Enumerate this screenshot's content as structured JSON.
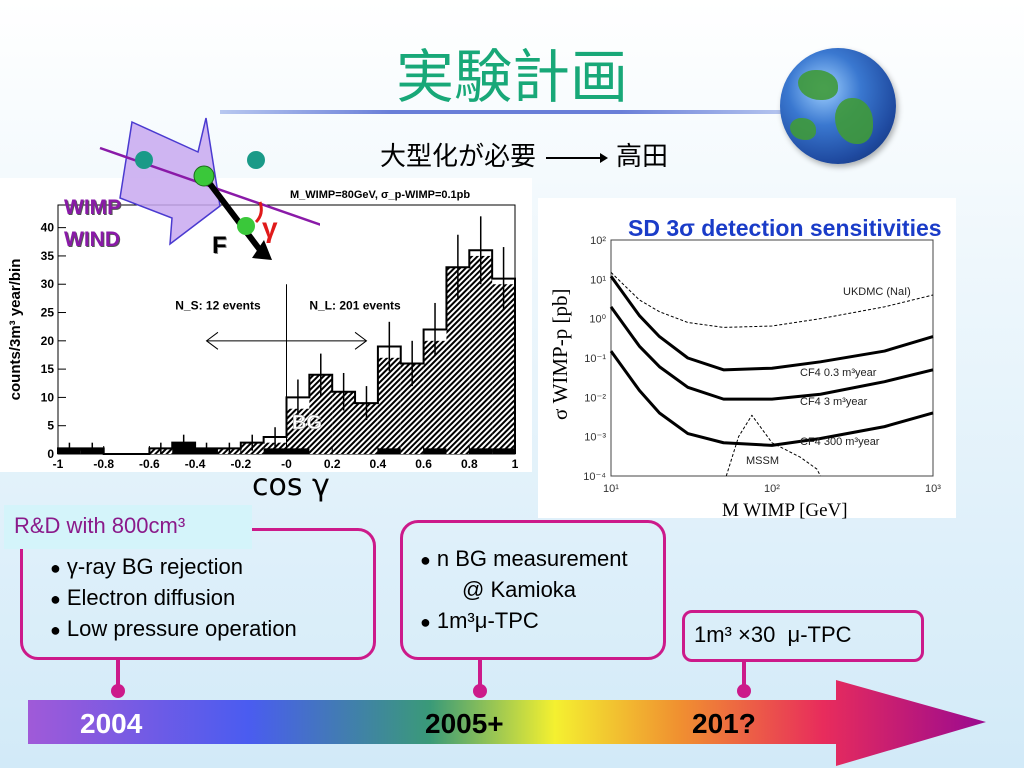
{
  "title": "実験計画",
  "subtitle": {
    "left": "大型化が必要",
    "right": "高田"
  },
  "overlay": {
    "wimp_wind": [
      "WIMP",
      "WIND"
    ],
    "force_label": "F",
    "angle_label": "γ",
    "bg_label": "BG"
  },
  "cos_label": "cos γ",
  "colors": {
    "title": "#18a878",
    "box_border": "#cc1a8a",
    "sens_title": "#1a3cc8",
    "wimp_wind": "#8a1aa8"
  },
  "chart_data": [
    {
      "type": "bar",
      "title": "M_WIMP=80GeV, σ_p-WIMP=0.1pb",
      "xlabel": "cos γ",
      "ylabel": "counts/3m³ year/bin",
      "xlim": [
        -1,
        1
      ],
      "ylim": [
        0,
        44
      ],
      "xticks": [
        "-1",
        "-0.8",
        "-0.6",
        "-0.4",
        "-0.2",
        "-0",
        "0.2",
        "0.4",
        "0.6",
        "0.8",
        "1"
      ],
      "yticks": [
        "0",
        "5",
        "10",
        "15",
        "20",
        "25",
        "30",
        "35",
        "40"
      ],
      "bin_edges": [
        -1,
        -0.9,
        -0.8,
        -0.7,
        -0.6,
        -0.5,
        -0.4,
        -0.3,
        -0.2,
        -0.1,
        0,
        0.1,
        0.2,
        0.3,
        0.4,
        0.5,
        0.6,
        0.7,
        0.8,
        0.9,
        1
      ],
      "series": [
        {
          "style": "outline",
          "values": [
            1,
            1,
            0,
            0,
            1,
            2,
            1,
            1,
            2,
            3,
            10,
            14,
            11,
            9,
            19,
            16,
            22,
            33,
            36,
            31
          ]
        },
        {
          "style": "hatched",
          "values": [
            1,
            1,
            0,
            0,
            1,
            2,
            1,
            1,
            2,
            2,
            8,
            14,
            11,
            9,
            17,
            16,
            20,
            33,
            35,
            30
          ]
        },
        {
          "style": "solid-black",
          "values": [
            1,
            1,
            0,
            0,
            0,
            2,
            1,
            0,
            0,
            1,
            1,
            0,
            0,
            0,
            1,
            0,
            1,
            0,
            1,
            1
          ]
        }
      ],
      "annotations": [
        "N_S: 12 events",
        "N_L: 201 events"
      ]
    },
    {
      "type": "line",
      "title": "SD 3σ detection sensitivities",
      "xlabel": "M WIMP [GeV]",
      "ylabel": "σ WIMP-p [pb]",
      "xscale": "log",
      "yscale": "log",
      "xlim": [
        10,
        1000
      ],
      "ylim": [
        0.0001,
        100
      ],
      "xticks": [
        "10¹",
        "10²",
        "10³"
      ],
      "yticks": [
        "10⁻⁴",
        "10⁻³",
        "10⁻²",
        "10⁻¹",
        "10⁰",
        "10¹",
        "10²"
      ],
      "series": [
        {
          "name": "UKDMC (NaI)",
          "style": "dashed",
          "x": [
            10,
            15,
            20,
            30,
            50,
            100,
            200,
            500,
            1000
          ],
          "y": [
            15,
            3,
            1.5,
            0.8,
            0.6,
            0.65,
            1,
            2,
            4
          ]
        },
        {
          "name": "CF4 0.3 m³year",
          "style": "solid",
          "x": [
            10,
            15,
            20,
            30,
            50,
            100,
            200,
            500,
            1000
          ],
          "y": [
            12,
            1.2,
            0.35,
            0.1,
            0.05,
            0.055,
            0.08,
            0.15,
            0.35
          ]
        },
        {
          "name": "CF4 3 m³year",
          "style": "solid",
          "x": [
            10,
            15,
            20,
            30,
            50,
            100,
            200,
            500,
            1000
          ],
          "y": [
            2,
            0.2,
            0.06,
            0.018,
            0.009,
            0.009,
            0.012,
            0.025,
            0.05
          ]
        },
        {
          "name": "CF4 300 m³year",
          "style": "solid",
          "x": [
            10,
            15,
            20,
            30,
            50,
            100,
            200,
            500,
            1000
          ],
          "y": [
            0.15,
            0.015,
            0.004,
            0.0012,
            0.0007,
            0.0006,
            0.0009,
            0.0018,
            0.004
          ]
        },
        {
          "name": "MSSM",
          "style": "dashed",
          "x": [
            52,
            62,
            75,
            100,
            150,
            190,
            200
          ],
          "y": [
            0.0001,
            0.001,
            0.0035,
            0.0007,
            0.0003,
            0.00015,
            0.0001
          ]
        }
      ]
    }
  ],
  "timeline": {
    "rd_label": "R&D with 800cm³",
    "box1": [
      "γ-ray BG rejection",
      "Electron diffusion",
      "Low pressure operation"
    ],
    "box2": [
      "n BG measurement",
      "@ Kamioka",
      "1m³μ-TPC"
    ],
    "box3": "1m³ ×30  μ-TPC",
    "years": [
      "2004",
      "2005+",
      "201?"
    ]
  }
}
